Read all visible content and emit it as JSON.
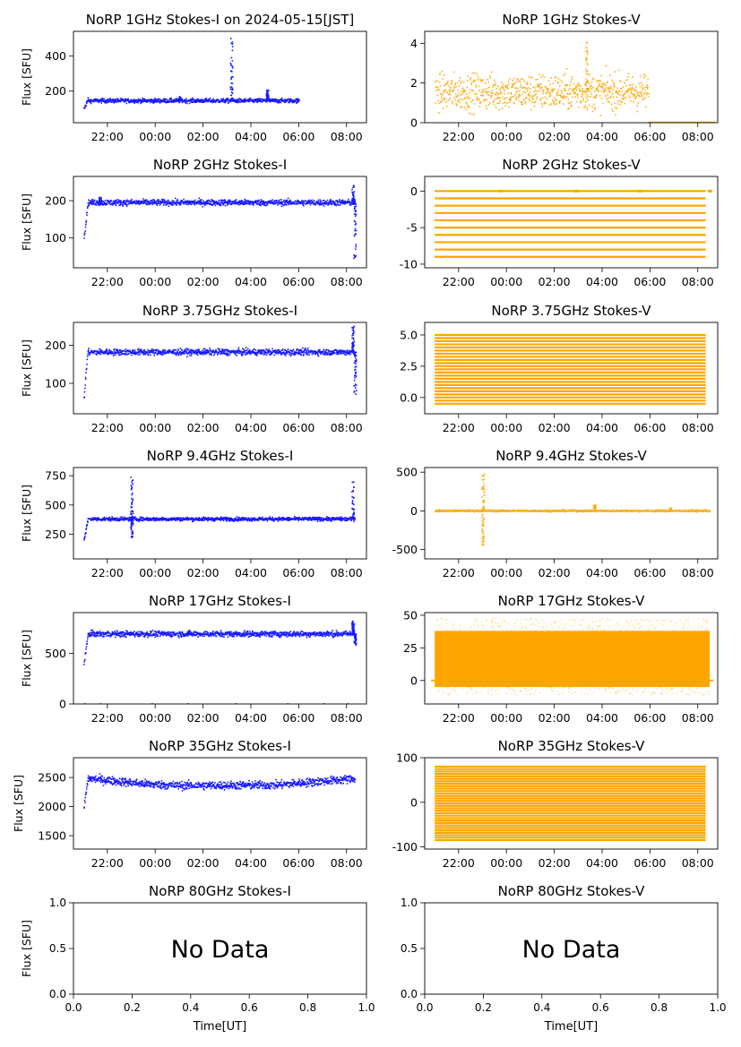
{
  "figure": {
    "time_ticks": [
      "22:00",
      "00:00",
      "02:00",
      "04:00",
      "06:00",
      "08:00"
    ],
    "xlabel_bottom": "Time[UT]",
    "ylabel": "Flux [SFU]",
    "colors": {
      "stokes_i": "#0000ff",
      "stokes_v": "#ffa500"
    }
  },
  "chart_data": [
    {
      "title": "NoRP 1GHz Stokes-I on 2024-05-15[JST]",
      "type": "scatter",
      "series": "Stokes-I",
      "ylabel": "Flux [SFU]",
      "ylim": [
        20,
        540
      ],
      "yticks": [
        200,
        400
      ],
      "data_span": [
        "21:00",
        "06:00"
      ],
      "baseline": 145,
      "noise": 6,
      "start_ramp": [
        100,
        150
      ],
      "spikes": [
        {
          "t": "01:00",
          "v": 170
        },
        {
          "t": "03:10",
          "v": 500
        },
        {
          "t": "04:40",
          "v": 210
        }
      ]
    },
    {
      "title": "NoRP 1GHz Stokes-V",
      "type": "scatter",
      "series": "Stokes-V",
      "ylabel": "",
      "ylim": [
        0,
        4.6
      ],
      "yticks": [
        0,
        2,
        4
      ],
      "data_span": [
        "21:00",
        "05:55"
      ],
      "baseline": 1.55,
      "noise": 0.45,
      "tail": {
        "from": "05:55",
        "to": "08:40",
        "value": 0.02
      },
      "spikes": [
        {
          "t": "03:20",
          "v": 4.1
        }
      ]
    },
    {
      "title": "NoRP 2GHz Stokes-I",
      "type": "scatter",
      "series": "Stokes-I",
      "ylabel": "Flux [SFU]",
      "ylim": [
        20,
        265
      ],
      "yticks": [
        100,
        200
      ],
      "data_span": [
        "21:00",
        "08:20"
      ],
      "baseline": 195,
      "noise": 4,
      "start_ramp": [
        100,
        195
      ],
      "spikes": [
        {
          "t": "21:40",
          "v": 210
        },
        {
          "t": "08:15",
          "v": 245
        },
        {
          "t": "08:20",
          "v": 40
        }
      ]
    },
    {
      "title": "NoRP 2GHz Stokes-V",
      "type": "quantized",
      "series": "Stokes-V",
      "ylabel": "",
      "ylim": [
        -10.5,
        2
      ],
      "yticks": [
        -10,
        -5,
        0
      ],
      "data_span": [
        "21:00",
        "08:20"
      ],
      "levels_from": -9,
      "levels_to": 0,
      "level_step": 1,
      "edge_points": [
        {
          "t": "23:40",
          "v": 0
        },
        {
          "t": "02:50",
          "v": 0
        },
        {
          "t": "05:30",
          "v": 0
        },
        {
          "t": "08:25",
          "v": 0
        }
      ]
    },
    {
      "title": "NoRP 3.75GHz Stokes-I",
      "type": "scatter",
      "series": "Stokes-I",
      "ylabel": "Flux [SFU]",
      "ylim": [
        20,
        260
      ],
      "yticks": [
        100,
        200
      ],
      "data_span": [
        "21:00",
        "08:20"
      ],
      "baseline": 182,
      "noise": 4,
      "start_ramp": [
        60,
        188
      ],
      "spikes": [
        {
          "t": "08:15",
          "v": 250
        },
        {
          "t": "08:20",
          "v": 65
        }
      ]
    },
    {
      "title": "NoRP 3.75GHz Stokes-V",
      "type": "quantized",
      "series": "Stokes-V",
      "ylabel": "",
      "ylim": [
        -1.3,
        6
      ],
      "yticks": [
        0.0,
        2.5,
        5.0
      ],
      "tick_decimals": 1,
      "data_span": [
        "21:00",
        "08:20"
      ],
      "levels_from": -0.5,
      "levels_to": 5.0,
      "level_step": 0.25
    },
    {
      "title": "NoRP 9.4GHz Stokes-I",
      "type": "scatter",
      "series": "Stokes-I",
      "ylabel": "Flux [SFU]",
      "ylim": [
        40,
        820
      ],
      "yticks": [
        250,
        500,
        750
      ],
      "data_span": [
        "21:00",
        "08:20"
      ],
      "baseline": 380,
      "noise": 8,
      "start_ramp": [
        200,
        380
      ],
      "spikes": [
        {
          "t": "23:00",
          "v": 750
        },
        {
          "t": "23:00",
          "v": 220
        },
        {
          "t": "08:15",
          "v": 700
        }
      ]
    },
    {
      "title": "NoRP 9.4GHz Stokes-V",
      "type": "scatter",
      "series": "Stokes-V",
      "ylabel": "",
      "ylim": [
        -620,
        560
      ],
      "yticks": [
        -500,
        0,
        500
      ],
      "data_span": [
        "21:00",
        "08:30"
      ],
      "baseline": 0,
      "noise": 6,
      "spikes": [
        {
          "t": "23:00",
          "v": 480
        },
        {
          "t": "23:00",
          "v": -450
        },
        {
          "t": "03:40",
          "v": 80
        },
        {
          "t": "06:50",
          "v": 40
        }
      ]
    },
    {
      "title": "NoRP 17GHz Stokes-I",
      "type": "scatter",
      "series": "Stokes-I",
      "ylabel": "Flux [SFU]",
      "ylim": [
        0,
        900
      ],
      "yticks": [
        0,
        500
      ],
      "data_span": [
        "21:00",
        "08:20"
      ],
      "baseline": 690,
      "noise": 14,
      "start_ramp": [
        400,
        680
      ],
      "spikes": [
        {
          "t": "08:15",
          "v": 820
        },
        {
          "t": "08:20",
          "v": 580
        }
      ],
      "zero_points": [
        "21:00",
        "21:40",
        "23:50",
        "01:20",
        "03:20",
        "05:30",
        "07:00",
        "08:00"
      ]
    },
    {
      "title": "NoRP 17GHz Stokes-V",
      "type": "band",
      "series": "Stokes-V",
      "ylabel": "",
      "ylim": [
        -18,
        52
      ],
      "yticks": [
        0,
        25,
        50
      ],
      "data_span": [
        "21:00",
        "08:30"
      ],
      "band": [
        -5,
        38
      ],
      "outlier_max": 48
    },
    {
      "title": "NoRP 35GHz Stokes-I",
      "type": "scatter",
      "series": "Stokes-I",
      "ylabel": "Flux [SFU]",
      "ylim": [
        1270,
        2840
      ],
      "yticks": [
        1500,
        2000,
        2500
      ],
      "data_span": [
        "21:00",
        "08:20"
      ],
      "noise": 35,
      "trend": [
        {
          "t": "21:00",
          "v": 2490
        },
        {
          "t": "23:30",
          "v": 2390
        },
        {
          "t": "01:00",
          "v": 2360
        },
        {
          "t": "05:00",
          "v": 2370
        },
        {
          "t": "08:20",
          "v": 2480
        }
      ],
      "start_ramp": [
        2000,
        2490
      ]
    },
    {
      "title": "NoRP 35GHz Stokes-V",
      "type": "quantized",
      "series": "Stokes-V",
      "ylabel": "",
      "ylim": [
        -105,
        100
      ],
      "yticks": [
        -100,
        0,
        100
      ],
      "data_span": [
        "21:00",
        "08:20"
      ],
      "levels_from": -85,
      "levels_to": 80,
      "level_step": 5.5
    },
    {
      "title": "NoRP 80GHz Stokes-I",
      "type": "empty",
      "series": "Stokes-I",
      "ylabel": "Flux [SFU]",
      "xlabel": "Time[UT]",
      "message": "No Data",
      "xticks": [
        "0.0",
        "0.2",
        "0.4",
        "0.6",
        "0.8",
        "1.0"
      ],
      "yticks": [
        "0.0",
        "0.5",
        "1.0"
      ]
    },
    {
      "title": "NoRP 80GHz Stokes-V",
      "type": "empty",
      "series": "Stokes-V",
      "ylabel": "",
      "xlabel": "Time[UT]",
      "message": "No Data",
      "xticks": [
        "0.0",
        "0.2",
        "0.4",
        "0.6",
        "0.8",
        "1.0"
      ],
      "yticks": [
        "0.0",
        "0.5",
        "1.0"
      ]
    }
  ]
}
